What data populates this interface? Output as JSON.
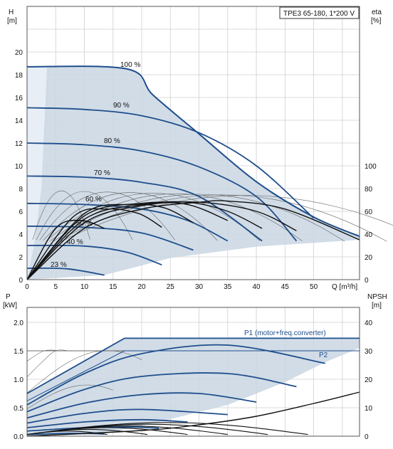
{
  "title_box": "TPE3 65-180, 1*200 V",
  "colors": {
    "curve_blue": "#1f4e8c",
    "fill_blue": "#c9d6e3",
    "fill_light": "#e7eef5",
    "eta_black": "#111111",
    "thin_grey": "#666666",
    "grid": "#cfcfcf"
  },
  "top": {
    "y_left_label": "H",
    "y_left_unit": "[m]",
    "y_right_label": "eta",
    "y_right_unit": "[%]",
    "x_label": "Q [m³/h]",
    "x_ticks": [
      "0",
      "5",
      "10",
      "15",
      "20",
      "25",
      "30",
      "35",
      "40",
      "45",
      "50"
    ],
    "y_left_ticks": [
      "0",
      "2",
      "4",
      "6",
      "8",
      "10",
      "12",
      "14",
      "16",
      "18",
      "20"
    ],
    "y_right_ticks": [
      "0",
      "20",
      "40",
      "60",
      "80",
      "100"
    ],
    "speed_labels": [
      "100 %",
      "90 %",
      "80 %",
      "70 %",
      "60 %",
      "50 %",
      "40 %",
      "23 %"
    ]
  },
  "bottom": {
    "y_left_label": "P",
    "y_left_unit": "[kW]",
    "y_right_label": "NPSH",
    "y_right_unit": "[m]",
    "y_left_ticks": [
      "0.0",
      "0.5",
      "1.0",
      "1.5",
      "2.0"
    ],
    "y_right_ticks": [
      "0",
      "10",
      "20",
      "30",
      "40"
    ],
    "p1_label": "P1 (motor+freq.converter)",
    "p2_label": "P2"
  },
  "chart_data": [
    {
      "type": "line",
      "title": "TPE3 65-180, 1*200 V",
      "xlabel": "Q [m³/h]",
      "ylabel": "H [m]",
      "y2label": "eta [%]",
      "xlim": [
        0,
        58
      ],
      "ylim": [
        0,
        21
      ],
      "y2lim": [
        0,
        105
      ],
      "speed_curves": [
        {
          "name": "100 %",
          "x": [
            0,
            17.5,
            22,
            30,
            40,
            50,
            58
          ],
          "y": [
            18.7,
            18.5,
            16.2,
            12.8,
            8.6,
            5.5,
            3.8
          ]
        },
        {
          "name": "90 %",
          "x": [
            0,
            10,
            20,
            30,
            40,
            50
          ],
          "y": [
            15.1,
            14.95,
            14.4,
            12.9,
            10.0,
            5.4
          ]
        },
        {
          "name": "80 %",
          "x": [
            0,
            10,
            20,
            30,
            40,
            47
          ],
          "y": [
            12.0,
            11.85,
            11.3,
            9.9,
            7.3,
            3.4
          ]
        },
        {
          "name": "70 %",
          "x": [
            0,
            10,
            20,
            30,
            41
          ],
          "y": [
            9.1,
            9.0,
            8.55,
            7.3,
            3.4
          ]
        },
        {
          "name": "60 %",
          "x": [
            0,
            10,
            20,
            28,
            35
          ],
          "y": [
            6.7,
            6.6,
            6.2,
            5.2,
            3.4
          ]
        },
        {
          "name": "50 %",
          "x": [
            0,
            10,
            20,
            29
          ],
          "y": [
            4.7,
            4.6,
            4.1,
            2.6
          ]
        },
        {
          "name": "40 %",
          "x": [
            0,
            10,
            17.5,
            23.5
          ],
          "y": [
            3.0,
            2.95,
            2.4,
            1.3
          ]
        },
        {
          "name": "23 %",
          "x": [
            0,
            7,
            13.5
          ],
          "y": [
            1.0,
            0.95,
            0.4
          ]
        }
      ],
      "efficiency_curves_pct": [
        {
          "x": [
            0,
            10,
            20,
            30,
            35,
            45,
            58
          ],
          "y": [
            0,
            45,
            62,
            68,
            69,
            62,
            35
          ]
        },
        {
          "x": [
            0,
            10,
            20,
            30,
            40,
            47
          ],
          "y": [
            0,
            50,
            65,
            68,
            60,
            43
          ]
        },
        {
          "x": [
            0,
            10,
            20,
            28,
            35,
            41
          ],
          "y": [
            0,
            53,
            66,
            68,
            60,
            45
          ]
        },
        {
          "x": [
            0,
            10,
            20,
            28,
            35
          ],
          "y": [
            0,
            56,
            67,
            66,
            52
          ]
        },
        {
          "x": [
            0,
            10,
            18,
            24,
            29
          ],
          "y": [
            0,
            58,
            66,
            63,
            50
          ]
        },
        {
          "x": [
            0,
            8,
            14,
            19.5,
            23.5
          ],
          "y": [
            0,
            55,
            62,
            58,
            46
          ]
        },
        {
          "x": [
            0,
            5,
            9.5,
            13.5
          ],
          "y": [
            0,
            45,
            52,
            45
          ]
        }
      ]
    },
    {
      "type": "line",
      "xlabel": "Q [m³/h]",
      "ylabel": "P [kW]",
      "y2label": "NPSH [m]",
      "xlim": [
        0,
        58
      ],
      "ylim": [
        0,
        2.0
      ],
      "y2lim": [
        0,
        40
      ],
      "series": [
        {
          "name": "P1 (motor+freq.converter)",
          "x": [
            0,
            17,
            30,
            45,
            58
          ],
          "y": [
            0.75,
            1.72,
            1.72,
            1.72,
            1.72
          ]
        },
        {
          "name": "P2",
          "x": [
            0,
            17,
            58
          ],
          "y": [
            0.62,
            1.5,
            1.5
          ]
        },
        {
          "x": [
            0,
            10,
            20,
            35,
            52
          ],
          "y": [
            0.55,
            1.1,
            1.45,
            1.6,
            1.28
          ]
        },
        {
          "x": [
            0,
            10,
            20,
            35,
            47
          ],
          "y": [
            0.43,
            0.82,
            1.05,
            1.1,
            0.87
          ]
        },
        {
          "x": [
            0,
            10,
            20,
            30,
            40
          ],
          "y": [
            0.32,
            0.58,
            0.73,
            0.75,
            0.6
          ]
        },
        {
          "x": [
            0,
            10,
            20,
            35
          ],
          "y": [
            0.23,
            0.4,
            0.47,
            0.38
          ]
        },
        {
          "x": [
            0,
            10,
            20,
            28
          ],
          "y": [
            0.15,
            0.25,
            0.29,
            0.25
          ]
        },
        {
          "x": [
            0,
            10,
            18,
            23
          ],
          "y": [
            0.09,
            0.15,
            0.16,
            0.14
          ]
        },
        {
          "x": [
            0,
            7,
            13.5
          ],
          "y": [
            0.03,
            0.05,
            0.04
          ]
        },
        {
          "name": "NPSH",
          "x": [
            0,
            20,
            30,
            40,
            50,
            58
          ],
          "y2": [
            0.0,
            2.0,
            4.0,
            7.0,
            11.5,
            15.5
          ]
        }
      ]
    }
  ]
}
